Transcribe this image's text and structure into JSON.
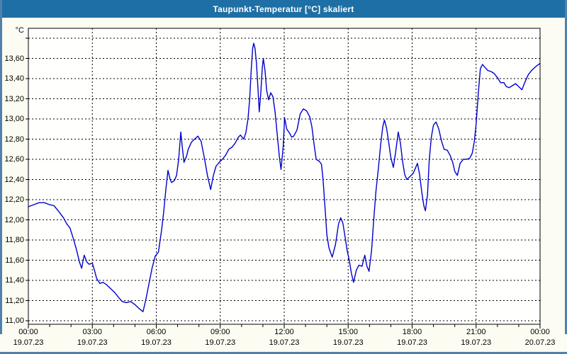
{
  "window": {
    "title": "Taupunkt-Temperatur [°C] skaliert"
  },
  "colors": {
    "titlebar_bg": "#1E6FA5",
    "titlebar_text": "#FFFFFF",
    "frame": "#4F82AB",
    "page_bg": "#FCFCF2",
    "plot_bg": "#FFFFFE",
    "line": "#0000CC",
    "grid": "#000000",
    "plot_border": "#000000",
    "axis_text": "#000000",
    "unit_text": "#00004D"
  },
  "chart_data": {
    "type": "line",
    "title": "Taupunkt-Temperatur [°C] skaliert",
    "unit_label": "°C",
    "grid": "dashed",
    "legend": "none",
    "xlim_hours": [
      0,
      24
    ],
    "ylim": [
      10.97,
      13.91
    ],
    "y_axis": {
      "unit": "°C",
      "grid_min": 11.0,
      "grid_max": 13.8,
      "step": 0.2,
      "decimal_style": "comma",
      "ticks": [
        {
          "label": "13,60",
          "value": 13.6
        },
        {
          "label": "13,40",
          "value": 13.4
        },
        {
          "label": "13,20",
          "value": 13.2
        },
        {
          "label": "13,00",
          "value": 13.0
        },
        {
          "label": "12,80",
          "value": 12.8
        },
        {
          "label": "12,60",
          "value": 12.6
        },
        {
          "label": "12,40",
          "value": 12.4
        },
        {
          "label": "12,20",
          "value": 12.2
        },
        {
          "label": "12,00",
          "value": 12.0
        },
        {
          "label": "11,80",
          "value": 11.8
        },
        {
          "label": "11,60",
          "value": 11.6
        },
        {
          "label": "11,40",
          "value": 11.4
        },
        {
          "label": "11,20",
          "value": 11.2
        },
        {
          "label": "11,00",
          "value": 11.0
        }
      ]
    },
    "x_axis": {
      "major_step_hours": 3,
      "minor_step_hours": 1,
      "ticks": [
        {
          "t": 0,
          "time": "00:00",
          "date": "19.07.23"
        },
        {
          "t": 3,
          "time": "03:00",
          "date": "19.07.23"
        },
        {
          "t": 6,
          "time": "06:00",
          "date": "19.07.23"
        },
        {
          "t": 9,
          "time": "09:00",
          "date": "19.07.23"
        },
        {
          "t": 12,
          "time": "12:00",
          "date": "19.07.23"
        },
        {
          "t": 15,
          "time": "15:00",
          "date": "19.07.23"
        },
        {
          "t": 18,
          "time": "18:00",
          "date": "19.07.23"
        },
        {
          "t": 21,
          "time": "21:00",
          "date": "19.07.23"
        },
        {
          "t": 24,
          "time": "00:00",
          "date": "20.07.23"
        }
      ]
    },
    "series": [
      {
        "name": "Taupunkt-Temperatur",
        "color": "#0000CC",
        "points": [
          [
            0,
            12.13
          ],
          [
            0.25,
            12.15
          ],
          [
            0.5,
            12.17
          ],
          [
            0.75,
            12.17
          ],
          [
            1.0,
            12.15
          ],
          [
            1.2,
            12.14
          ],
          [
            1.4,
            12.09
          ],
          [
            1.65,
            12.02
          ],
          [
            1.8,
            11.96
          ],
          [
            1.95,
            11.92
          ],
          [
            2.1,
            11.82
          ],
          [
            2.25,
            11.71
          ],
          [
            2.4,
            11.58
          ],
          [
            2.5,
            11.52
          ],
          [
            2.62,
            11.65
          ],
          [
            2.75,
            11.58
          ],
          [
            2.85,
            11.56
          ],
          [
            3.0,
            11.57
          ],
          [
            3.1,
            11.5
          ],
          [
            3.2,
            11.42
          ],
          [
            3.35,
            11.37
          ],
          [
            3.5,
            11.38
          ],
          [
            3.65,
            11.36
          ],
          [
            3.85,
            11.32
          ],
          [
            4.05,
            11.28
          ],
          [
            4.2,
            11.24
          ],
          [
            4.4,
            11.19
          ],
          [
            4.6,
            11.18
          ],
          [
            4.8,
            11.19
          ],
          [
            5.0,
            11.16
          ],
          [
            5.2,
            11.12
          ],
          [
            5.38,
            11.09
          ],
          [
            5.5,
            11.2
          ],
          [
            5.65,
            11.36
          ],
          [
            5.8,
            11.52
          ],
          [
            5.95,
            11.64
          ],
          [
            6.1,
            11.68
          ],
          [
            6.25,
            11.9
          ],
          [
            6.35,
            12.08
          ],
          [
            6.45,
            12.3
          ],
          [
            6.55,
            12.49
          ],
          [
            6.65,
            12.4
          ],
          [
            6.72,
            12.37
          ],
          [
            6.85,
            12.39
          ],
          [
            6.95,
            12.44
          ],
          [
            7.05,
            12.6
          ],
          [
            7.15,
            12.87
          ],
          [
            7.22,
            12.72
          ],
          [
            7.3,
            12.57
          ],
          [
            7.42,
            12.63
          ],
          [
            7.5,
            12.7
          ],
          [
            7.65,
            12.77
          ],
          [
            7.8,
            12.8
          ],
          [
            7.95,
            12.83
          ],
          [
            8.1,
            12.78
          ],
          [
            8.25,
            12.62
          ],
          [
            8.4,
            12.44
          ],
          [
            8.55,
            12.3
          ],
          [
            8.68,
            12.44
          ],
          [
            8.8,
            12.53
          ],
          [
            8.95,
            12.57
          ],
          [
            9.1,
            12.6
          ],
          [
            9.25,
            12.64
          ],
          [
            9.4,
            12.7
          ],
          [
            9.55,
            12.72
          ],
          [
            9.7,
            12.76
          ],
          [
            9.85,
            12.82
          ],
          [
            9.95,
            12.84
          ],
          [
            10.1,
            12.8
          ],
          [
            10.2,
            12.86
          ],
          [
            10.3,
            13.0
          ],
          [
            10.38,
            13.2
          ],
          [
            10.45,
            13.48
          ],
          [
            10.52,
            13.7
          ],
          [
            10.57,
            13.75
          ],
          [
            10.63,
            13.7
          ],
          [
            10.7,
            13.55
          ],
          [
            10.77,
            13.3
          ],
          [
            10.83,
            13.07
          ],
          [
            10.9,
            13.25
          ],
          [
            10.97,
            13.5
          ],
          [
            11.02,
            13.6
          ],
          [
            11.1,
            13.48
          ],
          [
            11.18,
            13.28
          ],
          [
            11.27,
            13.19
          ],
          [
            11.37,
            13.26
          ],
          [
            11.47,
            13.22
          ],
          [
            11.57,
            13.07
          ],
          [
            11.67,
            12.85
          ],
          [
            11.77,
            12.63
          ],
          [
            11.85,
            12.5
          ],
          [
            11.95,
            12.72
          ],
          [
            12.02,
            13.01
          ],
          [
            12.12,
            12.9
          ],
          [
            12.25,
            12.86
          ],
          [
            12.35,
            12.82
          ],
          [
            12.45,
            12.83
          ],
          [
            12.6,
            12.89
          ],
          [
            12.75,
            13.05
          ],
          [
            12.9,
            13.1
          ],
          [
            13.05,
            13.08
          ],
          [
            13.2,
            13.02
          ],
          [
            13.3,
            12.92
          ],
          [
            13.4,
            12.75
          ],
          [
            13.5,
            12.6
          ],
          [
            13.65,
            12.58
          ],
          [
            13.75,
            12.55
          ],
          [
            13.82,
            12.4
          ],
          [
            13.92,
            12.1
          ],
          [
            14.0,
            11.85
          ],
          [
            14.1,
            11.72
          ],
          [
            14.25,
            11.63
          ],
          [
            14.4,
            11.75
          ],
          [
            14.55,
            11.96
          ],
          [
            14.65,
            12.02
          ],
          [
            14.75,
            11.97
          ],
          [
            14.85,
            11.84
          ],
          [
            14.95,
            11.7
          ],
          [
            15.05,
            11.6
          ],
          [
            15.15,
            11.47
          ],
          [
            15.25,
            11.38
          ],
          [
            15.38,
            11.5
          ],
          [
            15.5,
            11.55
          ],
          [
            15.65,
            11.54
          ],
          [
            15.78,
            11.65
          ],
          [
            15.88,
            11.54
          ],
          [
            15.98,
            11.49
          ],
          [
            16.1,
            11.7
          ],
          [
            16.2,
            12.0
          ],
          [
            16.3,
            12.28
          ],
          [
            16.42,
            12.52
          ],
          [
            16.52,
            12.74
          ],
          [
            16.62,
            12.92
          ],
          [
            16.7,
            12.99
          ],
          [
            16.8,
            12.91
          ],
          [
            16.9,
            12.77
          ],
          [
            17.0,
            12.62
          ],
          [
            17.12,
            12.52
          ],
          [
            17.22,
            12.66
          ],
          [
            17.35,
            12.87
          ],
          [
            17.45,
            12.76
          ],
          [
            17.55,
            12.58
          ],
          [
            17.65,
            12.45
          ],
          [
            17.75,
            12.4
          ],
          [
            17.9,
            12.43
          ],
          [
            18.05,
            12.46
          ],
          [
            18.15,
            12.51
          ],
          [
            18.25,
            12.56
          ],
          [
            18.35,
            12.45
          ],
          [
            18.45,
            12.28
          ],
          [
            18.55,
            12.14
          ],
          [
            18.62,
            12.09
          ],
          [
            18.72,
            12.25
          ],
          [
            18.8,
            12.59
          ],
          [
            18.9,
            12.82
          ],
          [
            19.0,
            12.94
          ],
          [
            19.12,
            12.97
          ],
          [
            19.25,
            12.9
          ],
          [
            19.38,
            12.78
          ],
          [
            19.5,
            12.7
          ],
          [
            19.65,
            12.69
          ],
          [
            19.78,
            12.64
          ],
          [
            19.9,
            12.57
          ],
          [
            20.0,
            12.48
          ],
          [
            20.12,
            12.44
          ],
          [
            20.25,
            12.56
          ],
          [
            20.4,
            12.6
          ],
          [
            20.55,
            12.6
          ],
          [
            20.7,
            12.61
          ],
          [
            20.82,
            12.66
          ],
          [
            20.92,
            12.78
          ],
          [
            21.0,
            12.95
          ],
          [
            21.1,
            13.25
          ],
          [
            21.2,
            13.5
          ],
          [
            21.3,
            13.54
          ],
          [
            21.42,
            13.51
          ],
          [
            21.55,
            13.48
          ],
          [
            21.7,
            13.47
          ],
          [
            21.85,
            13.45
          ],
          [
            22.0,
            13.41
          ],
          [
            22.15,
            13.36
          ],
          [
            22.3,
            13.36
          ],
          [
            22.42,
            13.32
          ],
          [
            22.55,
            13.31
          ],
          [
            22.7,
            13.33
          ],
          [
            22.85,
            13.35
          ],
          [
            23.0,
            13.32
          ],
          [
            23.15,
            13.29
          ],
          [
            23.3,
            13.37
          ],
          [
            23.45,
            13.44
          ],
          [
            23.6,
            13.48
          ],
          [
            23.8,
            13.52
          ],
          [
            24.0,
            13.55
          ]
        ]
      }
    ]
  }
}
